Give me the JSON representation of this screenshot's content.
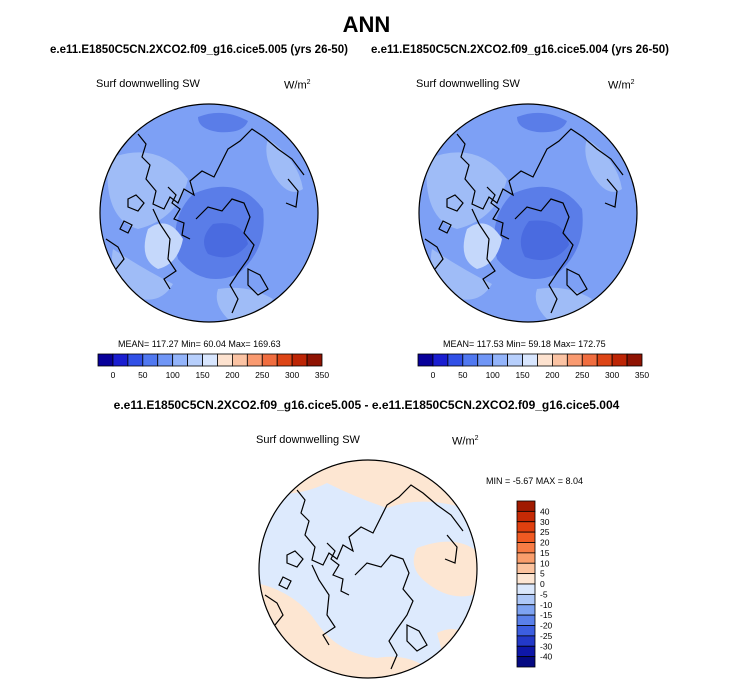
{
  "page": {
    "title": "ANN"
  },
  "colors": {
    "land_blue_dark": "#5a7de8",
    "ocean_blue": "#7da0f5",
    "mid_blue": "#9fbcf7",
    "light_blue": "#c5d8fb",
    "pale_blue": "#ddeafd",
    "peach": "#fde6d2",
    "coast": "#000000"
  },
  "chart_data": [
    {
      "type": "heatmap",
      "projection": "north-polar-stereographic",
      "run_title": "e.e11.E1850C5CN.2XCO2.f09_g16.cice5.005 (yrs 26-50)",
      "variable": "Surf downwelling SW",
      "units": "W/m",
      "units_exp": "2",
      "stats_text": "MEAN= 117.27  Min=  60.04  Max= 169.63",
      "mean": 117.27,
      "min": 60.04,
      "max": 169.63,
      "colorbar": {
        "orientation": "horizontal",
        "tick_labels": [
          "0",
          "50",
          "100",
          "150",
          "200",
          "250",
          "300",
          "350"
        ],
        "colors": [
          "#08009a",
          "#1a1ed0",
          "#3150e6",
          "#5078f0",
          "#7096f6",
          "#93b4fa",
          "#b7cffc",
          "#d8e6fe",
          "#fde2cf",
          "#fbc3a3",
          "#f99a70",
          "#f06d3f",
          "#dd4516",
          "#bd2505",
          "#8f1303"
        ]
      }
    },
    {
      "type": "heatmap",
      "projection": "north-polar-stereographic",
      "run_title": "e.e11.E1850C5CN.2XCO2.f09_g16.cice5.004 (yrs 26-50)",
      "variable": "Surf downwelling SW",
      "units": "W/m",
      "units_exp": "2",
      "stats_text": "MEAN= 117.53  Min=  59.18  Max= 172.75",
      "mean": 117.53,
      "min": 59.18,
      "max": 172.75,
      "colorbar": {
        "orientation": "horizontal",
        "tick_labels": [
          "0",
          "50",
          "100",
          "150",
          "200",
          "250",
          "300",
          "350"
        ],
        "colors": [
          "#08009a",
          "#1a1ed0",
          "#3150e6",
          "#5078f0",
          "#7096f6",
          "#93b4fa",
          "#b7cffc",
          "#d8e6fe",
          "#fde2cf",
          "#fbc3a3",
          "#f99a70",
          "#f06d3f",
          "#dd4516",
          "#bd2505",
          "#8f1303"
        ]
      }
    },
    {
      "type": "heatmap",
      "projection": "north-polar-stereographic",
      "diff_title": "e.e11.E1850C5CN.2XCO2.f09_g16.cice5.005 - e.e11.E1850C5CN.2XCO2.f09_g16.cice5.004",
      "variable": "Surf downwelling SW",
      "units": "W/m",
      "units_exp": "2",
      "stats_text": "MIN =  -5.67 MAX =   8.04",
      "min": -5.67,
      "max": 8.04,
      "colorbar": {
        "orientation": "vertical",
        "tick_labels": [
          "40",
          "30",
          "25",
          "20",
          "15",
          "10",
          "5",
          "0",
          "-5",
          "-10",
          "-15",
          "-20",
          "-25",
          "-30",
          "-40"
        ],
        "colors": [
          "#a01a00",
          "#c52a05",
          "#e0400f",
          "#f05a22",
          "#f77c45",
          "#fa9e6c",
          "#fcc39e",
          "#fde6d3",
          "#dbe8fc",
          "#aec8f8",
          "#7ea3f2",
          "#5a80ea",
          "#3c5ee0",
          "#2339c8",
          "#0e17a8",
          "#050a82"
        ]
      }
    }
  ]
}
